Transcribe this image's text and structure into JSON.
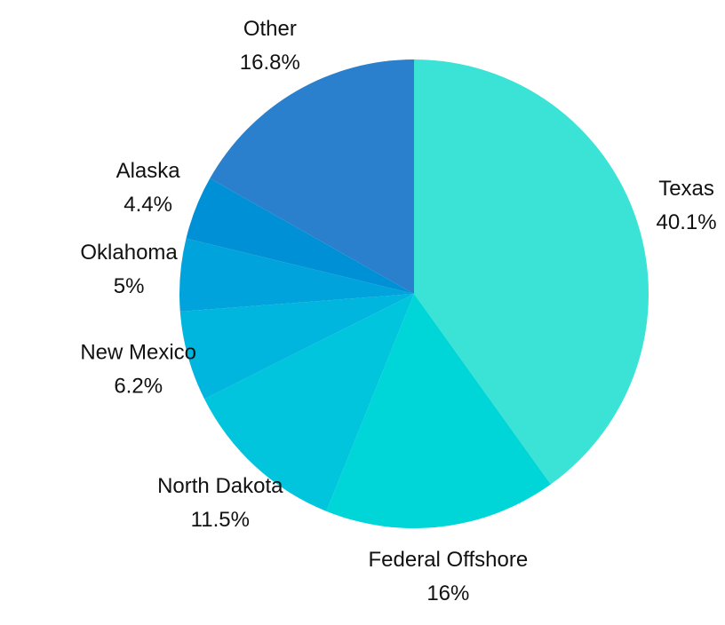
{
  "chart_data": {
    "type": "pie",
    "categories": [
      "Texas",
      "Federal Offshore",
      "North Dakota",
      "New Mexico",
      "Oklahoma",
      "Alaska",
      "Other"
    ],
    "values": [
      40.1,
      16,
      11.5,
      6.2,
      5,
      4.4,
      16.8
    ],
    "value_labels": [
      "40.1%",
      "16%",
      "11.5%",
      "6.2%",
      "5%",
      "4.4%",
      "16.8%"
    ],
    "colors": [
      "#3ae3d6",
      "#00d5d8",
      "#00c5dc",
      "#00b5de",
      "#00a3db",
      "#0090d6",
      "#2a80cc"
    ]
  }
}
